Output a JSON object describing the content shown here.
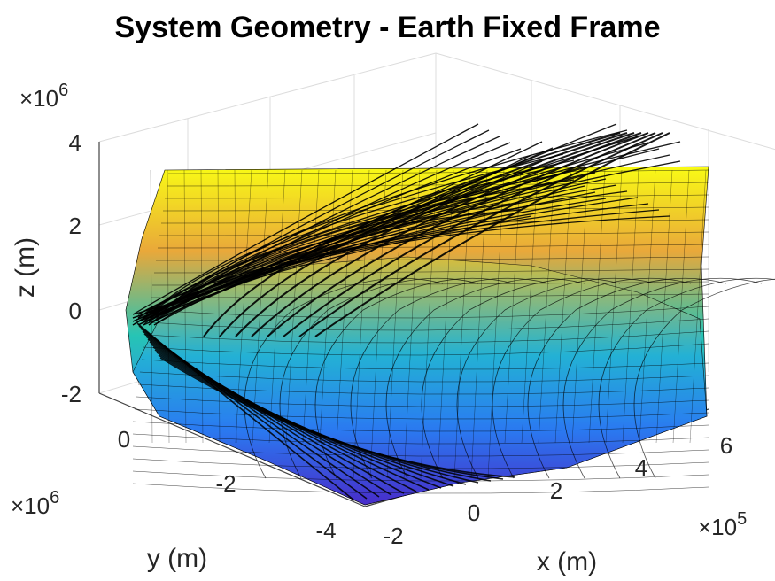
{
  "chart_data": {
    "type": "surface3d",
    "title": "System Geometry - Earth Fixed Frame",
    "xlabel": "x (m)",
    "ylabel": "y (m)",
    "zlabel": "z (m)",
    "x_ticks": [
      "-2",
      "0",
      "2",
      "4",
      "6"
    ],
    "y_ticks": [
      "0",
      "-2",
      "-4"
    ],
    "z_ticks": [
      "-2",
      "0",
      "2",
      "4"
    ],
    "x_exponent": "×10^5",
    "y_exponent": "×10^6",
    "z_exponent": "×10^6",
    "x_exponent_base": "×10",
    "x_exponent_power": "5",
    "y_exponent_base": "×10",
    "y_exponent_power": "6",
    "z_exponent_base": "×10",
    "z_exponent_power": "6",
    "xlim": [
      -2,
      6
    ],
    "ylim": [
      -4,
      0
    ],
    "zlim": [
      -2,
      4
    ],
    "grid": true,
    "colormap": "parula",
    "colors": {
      "low": "#3e26a8",
      "mid_low": "#2c8ef0",
      "mid": "#26c4b5",
      "mid_high": "#e9a83a",
      "high": "#f9fb15",
      "lines": "#000000"
    }
  }
}
